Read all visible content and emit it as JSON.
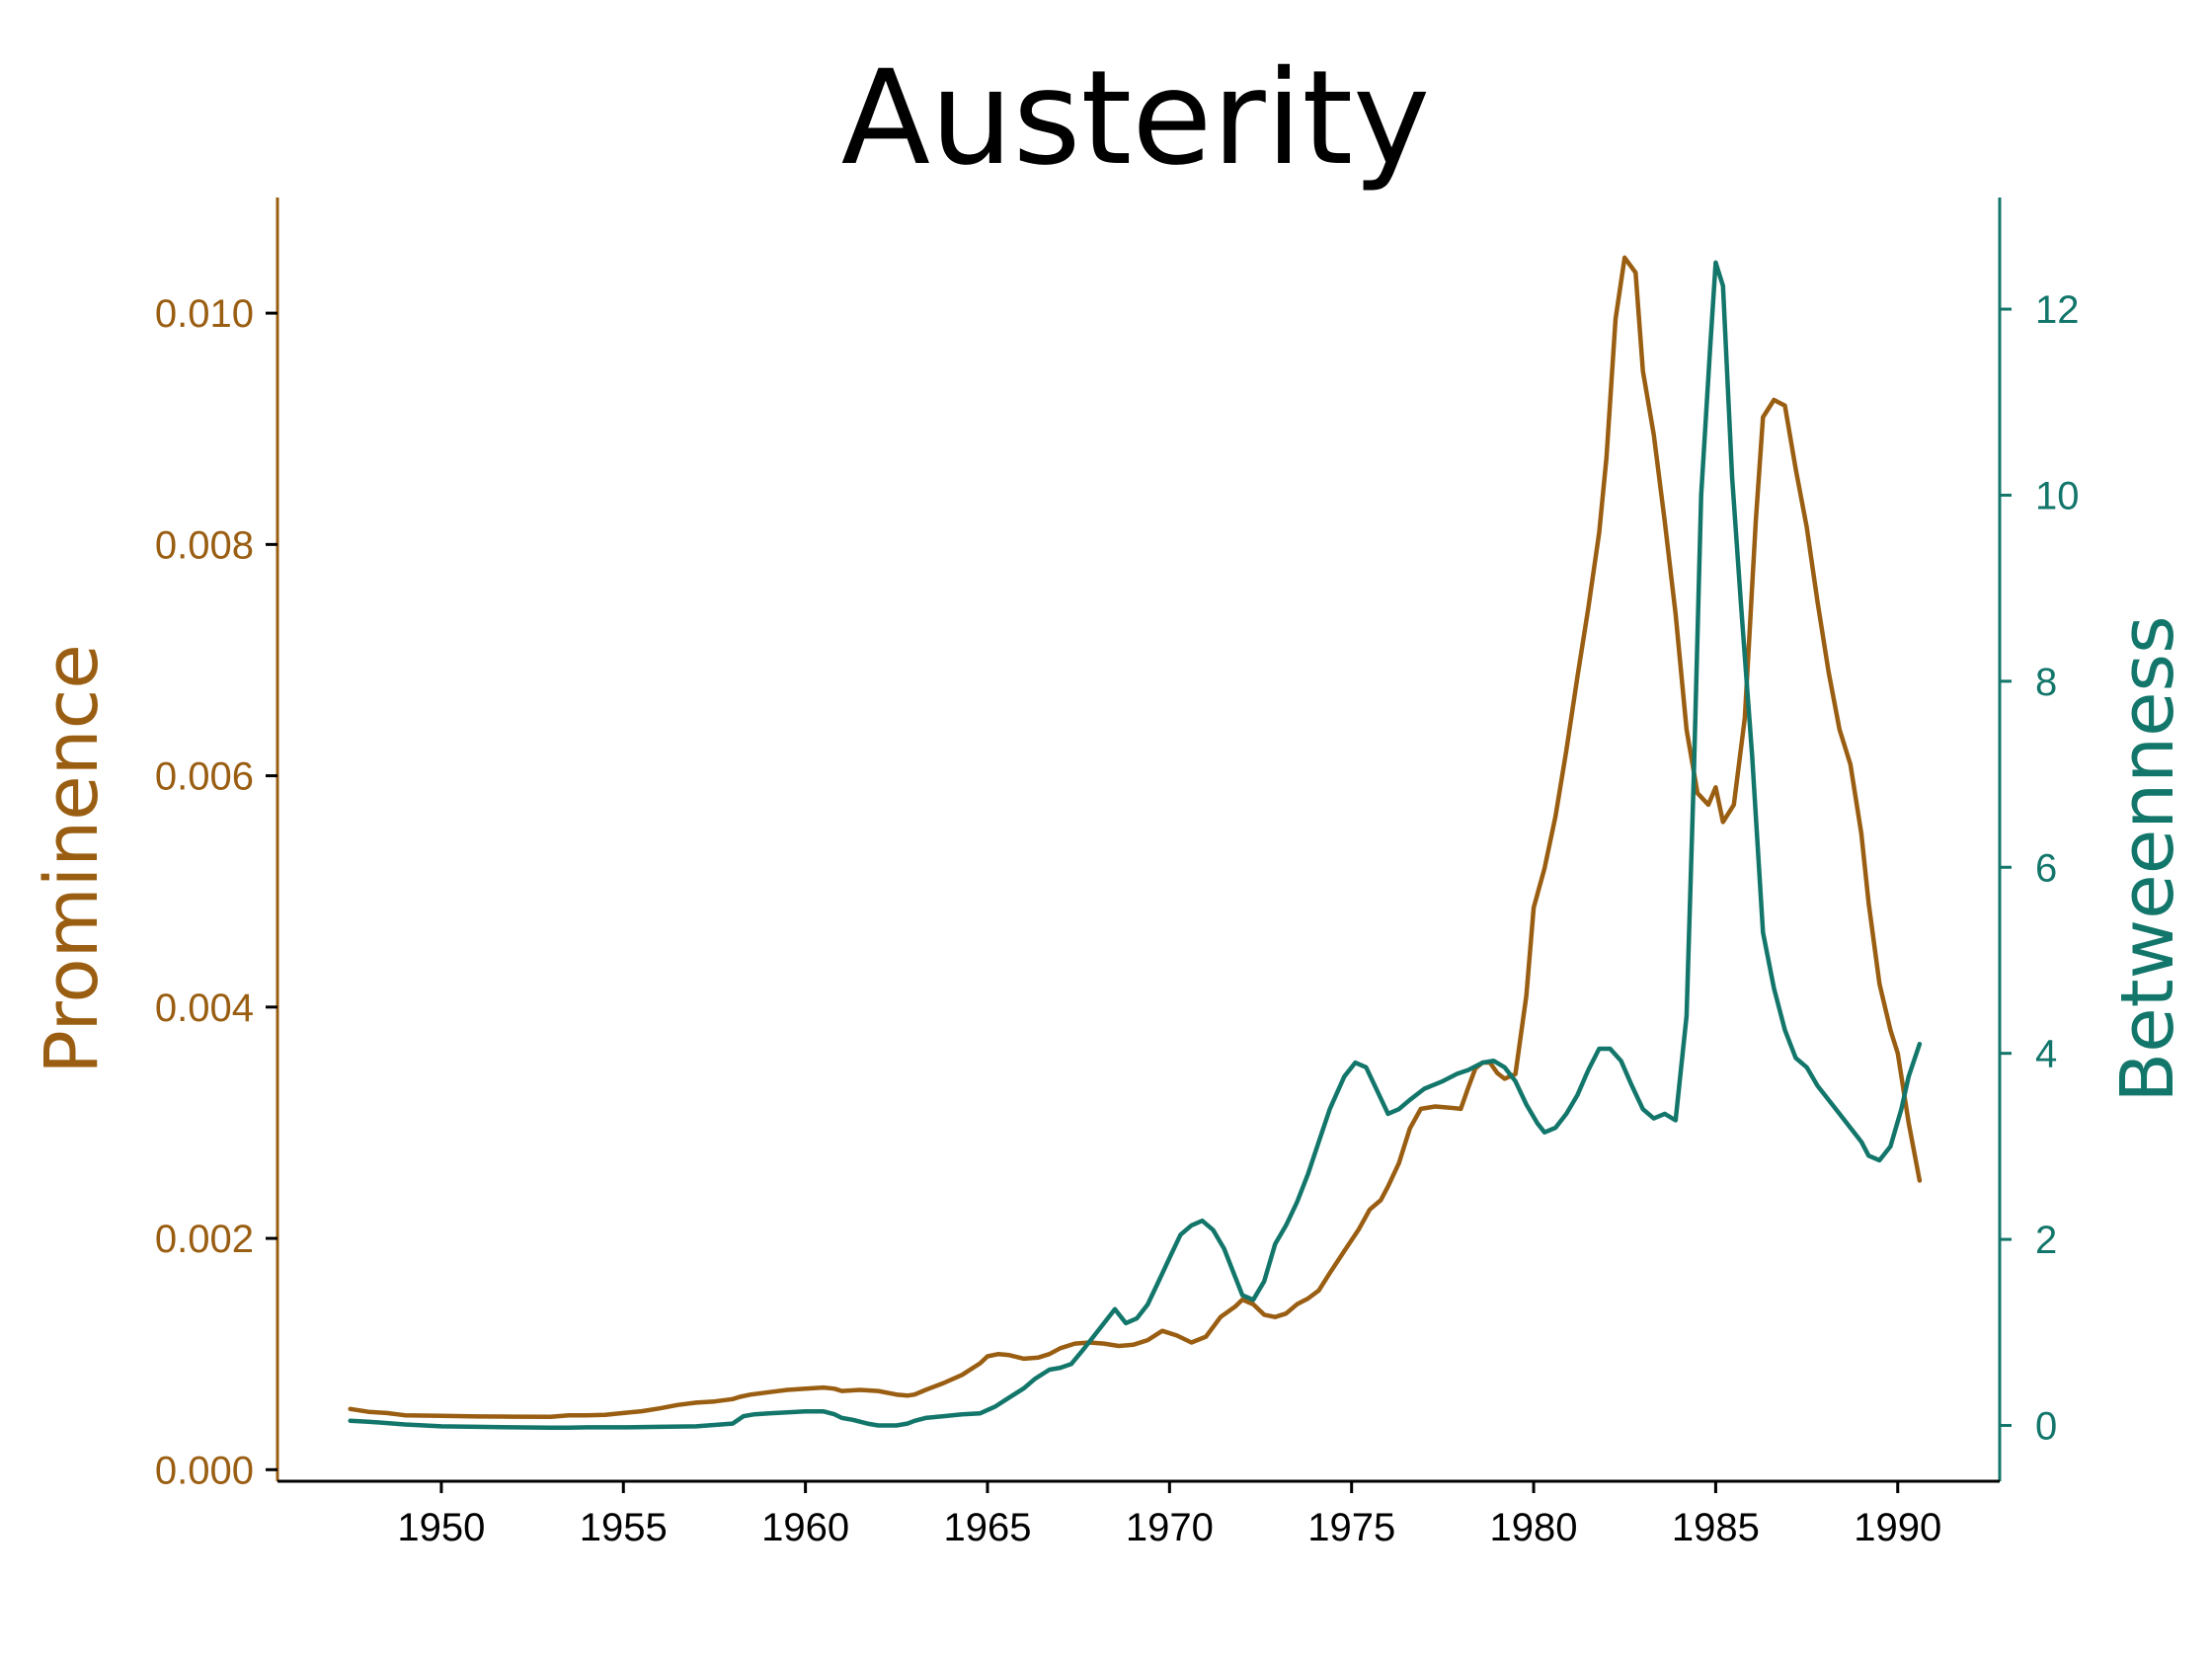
{
  "chart_data": {
    "type": "line",
    "title": "Austerity",
    "xlabel": "",
    "x_ticks": [
      "1950",
      "1955",
      "1960",
      "1965",
      "1970",
      "1975",
      "1980",
      "1985",
      "1990"
    ],
    "x_tick_values": [
      1950,
      1955,
      1960,
      1965,
      1970,
      1975,
      1980,
      1985,
      1990
    ],
    "xlim": [
      1945.5,
      1992.8
    ],
    "grid": false,
    "legend": "none",
    "colors": {
      "prominence": "#9a5e12",
      "betweenness": "#13766b",
      "axis": "#000000"
    },
    "left_axis": {
      "label": "Prominence",
      "ylim": [
        -0.0001,
        0.011
      ],
      "ticks": [
        "0.000",
        "0.002",
        "0.004",
        "0.006",
        "0.008",
        "0.010"
      ],
      "tick_values": [
        0.0,
        0.002,
        0.004,
        0.006,
        0.008,
        0.01
      ]
    },
    "right_axis": {
      "label": "Betweenness",
      "ylim": [
        -0.6,
        13.2
      ],
      "ticks": [
        "0",
        "2",
        "4",
        "6",
        "8",
        "10",
        "12"
      ],
      "tick_values": [
        0,
        2,
        4,
        6,
        8,
        10,
        12
      ]
    },
    "series": [
      {
        "name": "Prominence",
        "axis": "left",
        "x": [
          1947.5,
          1948.0,
          1948.5,
          1949.0,
          1950.0,
          1951.0,
          1952.0,
          1953.0,
          1953.5,
          1954.0,
          1954.5,
          1955.0,
          1955.5,
          1956.0,
          1956.5,
          1957.0,
          1957.5,
          1958.0,
          1958.2,
          1958.5,
          1959.0,
          1959.5,
          1960.0,
          1960.5,
          1960.8,
          1961.0,
          1961.5,
          1962.0,
          1962.5,
          1962.8,
          1963.0,
          1963.3,
          1963.8,
          1964.3,
          1964.8,
          1965.0,
          1965.3,
          1965.6,
          1966.0,
          1966.4,
          1966.7,
          1967.0,
          1967.4,
          1967.8,
          1968.2,
          1968.6,
          1969.0,
          1969.4,
          1969.8,
          1970.2,
          1970.6,
          1971.0,
          1971.4,
          1971.8,
          1972.0,
          1972.3,
          1972.6,
          1972.9,
          1973.2,
          1973.5,
          1973.8,
          1974.1,
          1974.4,
          1974.8,
          1975.2,
          1975.5,
          1975.8,
          1976.0,
          1976.3,
          1976.6,
          1976.9,
          1977.3,
          1977.7,
          1978.0,
          1978.2,
          1978.4,
          1978.6,
          1978.8,
          1979.0,
          1979.2,
          1979.5,
          1979.8,
          1980.0,
          1980.3,
          1980.6,
          1980.9,
          1981.2,
          1981.5,
          1981.8,
          1982.0,
          1982.25,
          1982.5,
          1982.8,
          1983.0,
          1983.3,
          1983.6,
          1983.9,
          1984.2,
          1984.5,
          1984.8,
          1985.0,
          1985.2,
          1985.5,
          1985.8,
          1986.1,
          1986.3,
          1986.6,
          1986.9,
          1987.2,
          1987.5,
          1987.8,
          1988.1,
          1988.4,
          1988.7,
          1989.0,
          1989.2,
          1989.5,
          1989.8,
          1990.0,
          1990.3,
          1990.6
        ],
        "values": [
          0.000525,
          0.0005,
          0.00049,
          0.00047,
          0.000465,
          0.00046,
          0.000458,
          0.000457,
          0.00047,
          0.00047,
          0.000475,
          0.00049,
          0.000505,
          0.00053,
          0.00056,
          0.00058,
          0.00059,
          0.00061,
          0.00063,
          0.00065,
          0.00067,
          0.00069,
          0.0007,
          0.00071,
          0.0007,
          0.00068,
          0.00069,
          0.00068,
          0.00065,
          0.00064,
          0.00065,
          0.00069,
          0.00075,
          0.00082,
          0.00092,
          0.00098,
          0.001,
          0.00099,
          0.00096,
          0.00097,
          0.001,
          0.00105,
          0.00109,
          0.0011,
          0.00109,
          0.00107,
          0.00108,
          0.00112,
          0.0012,
          0.00116,
          0.0011,
          0.00115,
          0.00132,
          0.00141,
          0.00147,
          0.00143,
          0.00134,
          0.00132,
          0.00135,
          0.00143,
          0.00148,
          0.00155,
          0.0017,
          0.00189,
          0.00208,
          0.00225,
          0.00233,
          0.00245,
          0.00265,
          0.00295,
          0.00312,
          0.00314,
          0.00313,
          0.00312,
          0.0033,
          0.00347,
          0.00352,
          0.00352,
          0.00343,
          0.00338,
          0.00342,
          0.0041,
          0.00486,
          0.0052,
          0.00565,
          0.00622,
          0.00685,
          0.00745,
          0.0081,
          0.00875,
          0.00995,
          0.01048,
          0.01035,
          0.0095,
          0.00895,
          0.0082,
          0.0074,
          0.0064,
          0.00585,
          0.00575,
          0.0059,
          0.0056,
          0.00575,
          0.0065,
          0.0082,
          0.0091,
          0.00925,
          0.0092,
          0.00865,
          0.00815,
          0.0075,
          0.0069,
          0.0064,
          0.0061,
          0.0055,
          0.0049,
          0.0042,
          0.0038,
          0.0036,
          0.003,
          0.0025
        ]
      },
      {
        "name": "Betweenness",
        "axis": "right",
        "x": [
          1947.5,
          1948.0,
          1949.0,
          1950.0,
          1951.0,
          1952.0,
          1953.0,
          1953.5,
          1954.0,
          1955.0,
          1956.0,
          1957.0,
          1958.0,
          1958.3,
          1958.6,
          1959.0,
          1959.5,
          1960.0,
          1960.5,
          1960.8,
          1961.0,
          1961.3,
          1961.7,
          1962.0,
          1962.5,
          1962.8,
          1963.0,
          1963.3,
          1963.8,
          1964.3,
          1964.8,
          1965.2,
          1965.6,
          1966.0,
          1966.3,
          1966.7,
          1967.0,
          1967.3,
          1967.6,
          1967.9,
          1968.2,
          1968.5,
          1968.8,
          1969.1,
          1969.4,
          1969.7,
          1970.0,
          1970.3,
          1970.6,
          1970.9,
          1971.2,
          1971.5,
          1971.8,
          1972.0,
          1972.3,
          1972.6,
          1972.9,
          1973.2,
          1973.5,
          1973.8,
          1974.1,
          1974.4,
          1974.8,
          1975.1,
          1975.4,
          1975.7,
          1976.0,
          1976.3,
          1976.6,
          1977.0,
          1977.5,
          1977.9,
          1978.2,
          1978.6,
          1978.9,
          1979.2,
          1979.5,
          1979.8,
          1980.1,
          1980.3,
          1980.6,
          1980.9,
          1981.2,
          1981.5,
          1981.8,
          1982.1,
          1982.4,
          1982.7,
          1983.0,
          1983.3,
          1983.6,
          1983.9,
          1984.2,
          1984.4,
          1984.6,
          1984.85,
          1985.0,
          1985.2,
          1985.45,
          1985.7,
          1986.0,
          1986.3,
          1986.6,
          1986.9,
          1987.2,
          1987.5,
          1987.8,
          1988.1,
          1988.4,
          1988.7,
          1989.0,
          1989.2,
          1989.5,
          1989.8,
          1990.1,
          1990.3,
          1990.6
        ],
        "values": [
          0.05,
          0.04,
          0.01,
          -0.01,
          -0.015,
          -0.02,
          -0.025,
          -0.025,
          -0.02,
          -0.02,
          -0.015,
          -0.01,
          0.02,
          0.1,
          0.12,
          0.13,
          0.14,
          0.15,
          0.15,
          0.12,
          0.08,
          0.06,
          0.02,
          0.0,
          0.0,
          0.02,
          0.05,
          0.08,
          0.1,
          0.12,
          0.13,
          0.2,
          0.3,
          0.4,
          0.5,
          0.6,
          0.62,
          0.66,
          0.8,
          0.95,
          1.1,
          1.25,
          1.1,
          1.15,
          1.3,
          1.55,
          1.8,
          2.05,
          2.15,
          2.2,
          2.1,
          1.9,
          1.6,
          1.4,
          1.35,
          1.55,
          1.95,
          2.15,
          2.4,
          2.7,
          3.05,
          3.4,
          3.75,
          3.9,
          3.85,
          3.6,
          3.35,
          3.4,
          3.5,
          3.62,
          3.7,
          3.78,
          3.82,
          3.9,
          3.92,
          3.85,
          3.7,
          3.45,
          3.25,
          3.15,
          3.2,
          3.35,
          3.55,
          3.82,
          4.05,
          4.05,
          3.92,
          3.65,
          3.4,
          3.3,
          3.35,
          3.28,
          4.4,
          7.0,
          10.0,
          11.6,
          12.5,
          12.25,
          10.2,
          8.8,
          7.2,
          5.3,
          4.7,
          4.25,
          3.95,
          3.85,
          3.65,
          3.5,
          3.35,
          3.2,
          3.05,
          2.9,
          2.85,
          3.0,
          3.4,
          3.75,
          4.1
        ]
      }
    ]
  }
}
